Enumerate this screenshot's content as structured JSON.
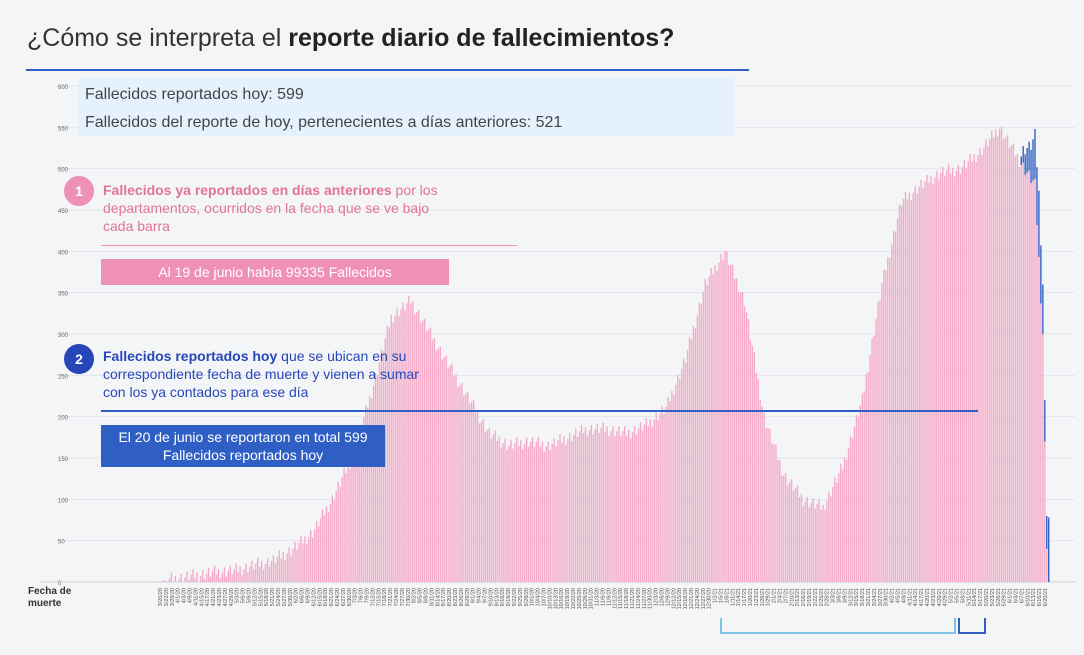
{
  "header": {
    "title_plain": "¿Cómo se interpreta el ",
    "title_bold": "reporte diario de fallecimientos?"
  },
  "summary": {
    "line1": "Fallecidos reportados hoy: 599",
    "line2": "Fallecidos del reporte de hoy, pertenecientes a días anteriores: 521"
  },
  "annotation1": {
    "number": "1",
    "bold": "Fallecidos ya reportados en días anteriores",
    "text": " por los departamentos, ocurridos en la fecha que se ve bajo cada barra",
    "box": "Al 19 de junio había 99335 Fallecidos"
  },
  "annotation2": {
    "number": "2",
    "bold": "Fallecidos reportados hoy",
    "text": " que se ubican en su correspondiente fecha de muerte y vienen a sumar con los ya contados para ese día",
    "box_line1": "El 20 de junio se reportaron en total 599",
    "box_line2": "Fallecidos reportados hoy"
  },
  "xlabel_line1": "Fecha de",
  "xlabel_line2": "muerte",
  "colors": {
    "previous": "#f4aac7",
    "today": "#2f5fc4",
    "pink_label": "#ef91b4",
    "blue_label": "#2f5fc4",
    "bracket_light": "#7ec3e6",
    "bracket_dark": "#2f5fc4"
  },
  "chart_data": {
    "type": "bar",
    "stacked": true,
    "ylim": [
      0,
      600
    ],
    "yticks": [
      0,
      50,
      100,
      150,
      200,
      250,
      300,
      350,
      400,
      450,
      500,
      550,
      600
    ],
    "grid": true,
    "x_start": "2020-03-20",
    "x_end": "2021-06-20",
    "xtick_labels": [
      "3/20/20",
      "3/22/20",
      "3/28/20",
      "4/1/20",
      "4/3/20",
      "4/9/20",
      "4/11/20",
      "4/15/20",
      "4/17/20",
      "4/21/20",
      "4/23/20",
      "4/27/20",
      "4/29/20",
      "5/3/20",
      "5/6/20",
      "5/9/20",
      "5/12/20",
      "5/15/20",
      "5/18/20",
      "5/21/20",
      "5/24/20",
      "5/27/20",
      "5/30/20",
      "6/2/20",
      "6/6/20",
      "6/9/20",
      "6/12/20",
      "6/15/20",
      "6/18/20",
      "6/21/20",
      "6/24/20",
      "6/27/20",
      "6/30/20",
      "7/3/20",
      "7/6/20",
      "7/9/20",
      "7/12/20",
      "7/15/20",
      "7/18/20",
      "7/21/20",
      "7/24/20",
      "7/27/20",
      "7/30/20",
      "8/2/20",
      "8/5/20",
      "8/8/20",
      "8/11/20",
      "8/14/20",
      "8/17/20",
      "8/20/20",
      "8/23/20",
      "8/26/20",
      "8/29/20",
      "9/1/20",
      "9/4/20",
      "9/7/20",
      "9/10/20",
      "9/13/20",
      "9/16/20",
      "9/19/20",
      "9/22/20",
      "9/25/20",
      "9/28/20",
      "10/1/20",
      "10/4/20",
      "10/7/20",
      "10/10/20",
      "10/13/20",
      "10/16/20",
      "10/19/20",
      "10/22/20",
      "10/25/20",
      "10/28/20",
      "10/31/20",
      "11/3/20",
      "11/6/20",
      "11/9/20",
      "11/12/20",
      "11/15/20",
      "11/18/20",
      "11/21/20",
      "11/24/20",
      "11/27/20",
      "11/30/20",
      "12/3/20",
      "12/6/20",
      "12/9/20",
      "12/12/20",
      "12/15/20",
      "12/18/20",
      "12/21/20",
      "12/24/20",
      "12/27/20",
      "12/30/20",
      "1/2/21",
      "1/5/21",
      "1/8/21",
      "1/11/21",
      "1/14/21",
      "1/17/21",
      "1/20/21",
      "1/23/21",
      "1/26/21",
      "1/29/21",
      "2/1/21",
      "2/4/21",
      "2/7/21",
      "2/10/21",
      "2/13/21",
      "2/16/21",
      "2/19/21",
      "2/22/21",
      "2/25/21",
      "2/28/21",
      "3/3/21",
      "3/6/21",
      "3/9/21",
      "3/12/21",
      "3/15/21",
      "3/18/21",
      "3/21/21",
      "3/24/21",
      "3/27/21",
      "3/30/21",
      "4/2/21",
      "4/5/21",
      "4/8/21",
      "4/11/21",
      "4/14/21",
      "4/17/21",
      "4/20/21",
      "4/23/21",
      "4/26/21",
      "4/29/21",
      "5/2/21",
      "5/5/21",
      "5/8/21",
      "5/11/21",
      "5/14/21",
      "5/17/21",
      "5/20/21",
      "5/23/21",
      "5/26/21",
      "5/29/21",
      "6/1/21",
      "6/4/21",
      "6/7/21",
      "6/10/21",
      "6/13/21",
      "6/16/21",
      "6/20/21"
    ],
    "series": [
      {
        "name": "Fallecidos ya reportados en días anteriores",
        "keypoints": [
          [
            0,
            0
          ],
          [
            10,
            4
          ],
          [
            20,
            8
          ],
          [
            30,
            12
          ],
          [
            40,
            14
          ],
          [
            50,
            20
          ],
          [
            60,
            26
          ],
          [
            70,
            40
          ],
          [
            80,
            60
          ],
          [
            90,
            100
          ],
          [
            100,
            150
          ],
          [
            110,
            230
          ],
          [
            120,
            320
          ],
          [
            130,
            340
          ],
          [
            140,
            300
          ],
          [
            150,
            260
          ],
          [
            160,
            220
          ],
          [
            170,
            180
          ],
          [
            180,
            165
          ],
          [
            190,
            170
          ],
          [
            200,
            165
          ],
          [
            210,
            175
          ],
          [
            220,
            185
          ],
          [
            230,
            185
          ],
          [
            240,
            180
          ],
          [
            250,
            190
          ],
          [
            260,
            210
          ],
          [
            270,
            270
          ],
          [
            280,
            360
          ],
          [
            290,
            400
          ],
          [
            300,
            340
          ],
          [
            310,
            200
          ],
          [
            320,
            130
          ],
          [
            330,
            100
          ],
          [
            340,
            90
          ],
          [
            350,
            140
          ],
          [
            360,
            220
          ],
          [
            370,
            360
          ],
          [
            380,
            460
          ],
          [
            390,
            480
          ],
          [
            400,
            495
          ],
          [
            410,
            500
          ],
          [
            420,
            520
          ],
          [
            430,
            550
          ],
          [
            440,
            510
          ],
          [
            448,
            480
          ],
          [
            452,
            300
          ],
          [
            454,
            40
          ],
          [
            455,
            0
          ]
        ]
      },
      {
        "name": "Fallecidos reportados hoy",
        "keypoints": [
          [
            0,
            0
          ],
          [
            440,
            0
          ],
          [
            442,
            20
          ],
          [
            444,
            30
          ],
          [
            446,
            40
          ],
          [
            448,
            60
          ],
          [
            450,
            80
          ],
          [
            452,
            60
          ],
          [
            454,
            40
          ],
          [
            455,
            78
          ]
        ]
      }
    ]
  }
}
